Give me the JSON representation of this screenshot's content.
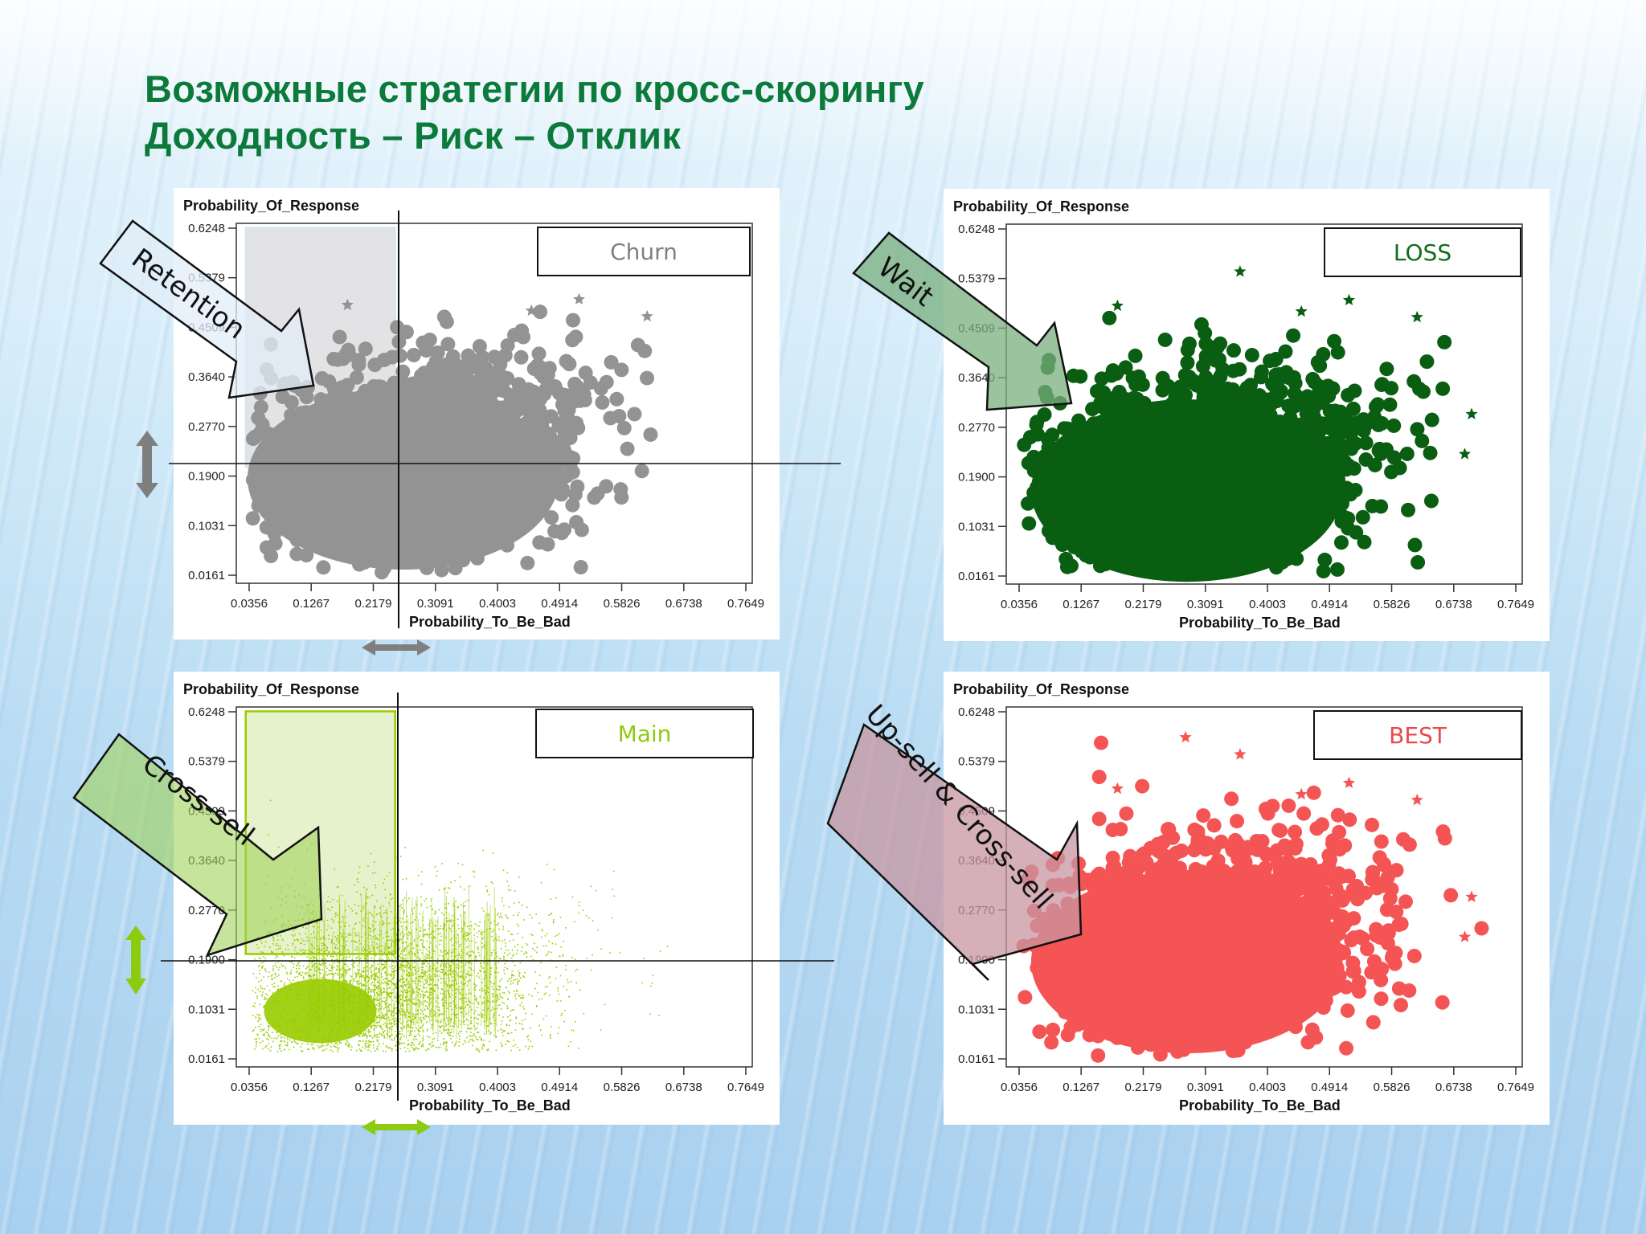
{
  "slide": {
    "title_line1": "Возможные стратегии по кросс-скорингу",
    "title_line2": "Доходность – Риск – Отклик"
  },
  "axes": {
    "y_label": "Probability_Of_Response",
    "x_label": "Probability_To_Be_Bad",
    "y_ticks": [
      "0.6248",
      "0.5379",
      "0.4509",
      "0.3640",
      "0.2770",
      "0.1900",
      "0.1031",
      "0.0161"
    ],
    "x_ticks": [
      "0.0356",
      "0.1267",
      "0.2179",
      "0.3091",
      "0.4003",
      "0.4914",
      "0.5826",
      "0.6738",
      "0.7649"
    ]
  },
  "panels": [
    {
      "id": "churn",
      "label": "Churn",
      "label_color": "#7f7f7f",
      "point_color": "#939393",
      "marker": "star",
      "arrow_label": "Retention",
      "arrow_fill": "rgba(225,238,248,0.75)"
    },
    {
      "id": "loss",
      "label": "LOSS",
      "label_color": "#0f6e1a",
      "point_color": "#0a5e12",
      "marker": "star",
      "arrow_label": "Wait",
      "arrow_fill": "rgba(120,175,125,0.75)"
    },
    {
      "id": "main",
      "label": "Main",
      "label_color": "#8ccc10",
      "point_color": "#99cc00",
      "marker": "dot",
      "arrow_label": "Cross-sell",
      "arrow_fill": "rgba(160,210,90,0.6)"
    },
    {
      "id": "best",
      "label": "BEST",
      "label_color": "#e84a4a",
      "point_color": "#f55454",
      "marker": "star",
      "arrow_label": "Up-sell & Cross-sell",
      "arrow_fill": "rgba(200,150,160,0.75)"
    }
  ],
  "chart_data": [
    {
      "type": "scatter",
      "title": "Churn",
      "xlabel": "Probability_To_Be_Bad",
      "ylabel": "Probability_Of_Response",
      "xlim": [
        0.0356,
        0.7649
      ],
      "ylim": [
        0.0161,
        0.6248
      ],
      "x_ticks": [
        0.0356,
        0.1267,
        0.2179,
        0.3091,
        0.4003,
        0.4914,
        0.5826,
        0.6738,
        0.7649
      ],
      "y_ticks": [
        0.0161,
        0.1031,
        0.19,
        0.277,
        0.364,
        0.4509,
        0.5379,
        0.6248
      ],
      "series": [
        {
          "name": "Churn",
          "color": "#939393",
          "marker": "star",
          "cloud": {
            "x_range": [
              0.04,
              0.66
            ],
            "y_range": [
              0.02,
              0.48
            ],
            "center": [
              0.25,
              0.22
            ]
          }
        }
      ],
      "reference_lines": {
        "x": 0.254,
        "y": 0.205
      },
      "highlight_region": {
        "x": [
          0.04,
          0.25
        ],
        "y": [
          0.205,
          0.62
        ],
        "color": "#e3e3e6"
      },
      "annotation": "Retention",
      "grid": false
    },
    {
      "type": "scatter",
      "title": "LOSS",
      "xlabel": "Probability_To_Be_Bad",
      "ylabel": "Probability_Of_Response",
      "xlim": [
        0.0356,
        0.7649
      ],
      "ylim": [
        0.0161,
        0.6248
      ],
      "x_ticks": [
        0.0356,
        0.1267,
        0.2179,
        0.3091,
        0.4003,
        0.4914,
        0.5826,
        0.6738,
        0.7649
      ],
      "y_ticks": [
        0.0161,
        0.1031,
        0.19,
        0.277,
        0.364,
        0.4509,
        0.5379,
        0.6248
      ],
      "series": [
        {
          "name": "LOSS",
          "color": "#0a5e12",
          "marker": "star",
          "cloud": {
            "x_range": [
              0.04,
              0.7
            ],
            "y_range": [
              0.02,
              0.54
            ],
            "center": [
              0.27,
              0.2
            ]
          }
        }
      ],
      "annotation": "Wait",
      "grid": false
    },
    {
      "type": "scatter",
      "title": "Main",
      "xlabel": "Probability_To_Be_Bad",
      "ylabel": "Probability_Of_Response",
      "xlim": [
        0.0356,
        0.7649
      ],
      "ylim": [
        0.0161,
        0.6248
      ],
      "x_ticks": [
        0.0356,
        0.1267,
        0.2179,
        0.3091,
        0.4003,
        0.4914,
        0.5826,
        0.6738,
        0.7649
      ],
      "y_ticks": [
        0.0161,
        0.1031,
        0.19,
        0.277,
        0.364,
        0.4509,
        0.5379,
        0.6248
      ],
      "series": [
        {
          "name": "Main",
          "color": "#99cc00",
          "marker": "dot",
          "cloud": {
            "x_range": [
              0.04,
              0.68
            ],
            "y_range": [
              0.03,
              0.5
            ],
            "center": [
              0.18,
              0.12
            ]
          }
        }
      ],
      "reference_lines": {
        "x": 0.254,
        "y": 0.19
      },
      "highlight_region": {
        "x": [
          0.04,
          0.25
        ],
        "y": [
          0.2,
          0.62
        ],
        "color": "#e6f2cc"
      },
      "annotation": "Cross-sell",
      "grid": false
    },
    {
      "type": "scatter",
      "title": "BEST",
      "xlabel": "Probability_To_Be_Bad",
      "ylabel": "Probability_Of_Response",
      "xlim": [
        0.0356,
        0.7649
      ],
      "ylim": [
        0.0161,
        0.6248
      ],
      "x_ticks": [
        0.0356,
        0.1267,
        0.2179,
        0.3091,
        0.4003,
        0.4914,
        0.5826,
        0.6738,
        0.7649
      ],
      "y_ticks": [
        0.0161,
        0.1031,
        0.19,
        0.277,
        0.364,
        0.4509,
        0.5379,
        0.6248
      ],
      "series": [
        {
          "name": "BEST",
          "color": "#f55454",
          "marker": "star",
          "cloud": {
            "x_range": [
              0.04,
              0.72
            ],
            "y_range": [
              0.02,
              0.62
            ],
            "center": [
              0.27,
              0.22
            ]
          }
        }
      ],
      "annotation": "Up-sell & Cross-sell",
      "grid": false
    }
  ]
}
